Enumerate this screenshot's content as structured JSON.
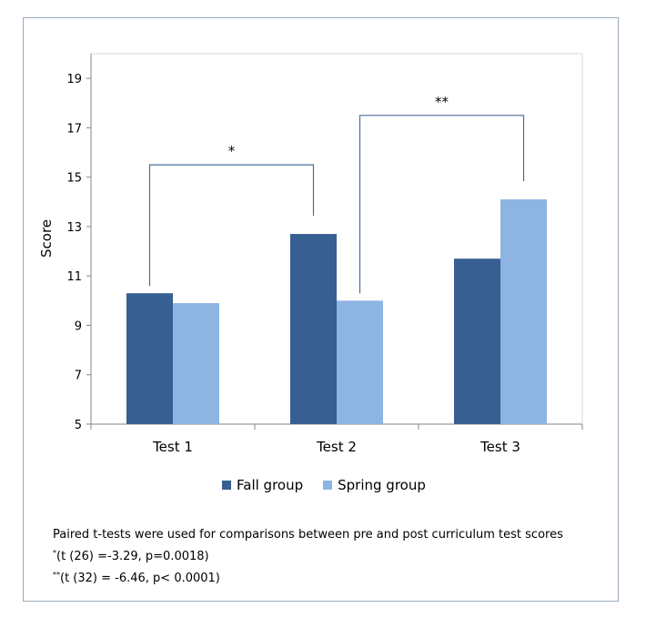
{
  "chart_data": {
    "type": "bar",
    "categories": [
      "Test 1",
      "Test 2",
      "Test 3"
    ],
    "series": [
      {
        "name": "Fall group",
        "values": [
          10.3,
          12.7,
          11.7
        ],
        "color": "#375f92"
      },
      {
        "name": "Spring group",
        "values": [
          9.9,
          10.0,
          14.1
        ],
        "color": "#8eb4e3"
      }
    ],
    "xlabel": "",
    "ylabel": "Score",
    "ylim": [
      5,
      20
    ],
    "yticks": [
      5,
      7,
      9,
      11,
      13,
      15,
      17,
      19
    ],
    "grid": false,
    "legend": "bottom",
    "annotations": [
      {
        "text": "*",
        "from": "Test 1 Fall group",
        "to": "Test 2 Fall group",
        "level": 15.5
      },
      {
        "text": "**",
        "from": "Test 2 Spring group",
        "to": "Test 3 Spring group",
        "level": 17.5
      }
    ]
  },
  "notes": {
    "line1": "Paired t-tests were used for comparisons between pre and post curriculum test scores",
    "line2_marker": "*",
    "line2": "(t (26) =-3.29, p=0.0018)",
    "line3_marker": "**",
    "line3": "(t (32) = -6.46, p< 0.0001)"
  },
  "colors": {
    "axis": "#868686",
    "bracket": "#4a6d99"
  }
}
